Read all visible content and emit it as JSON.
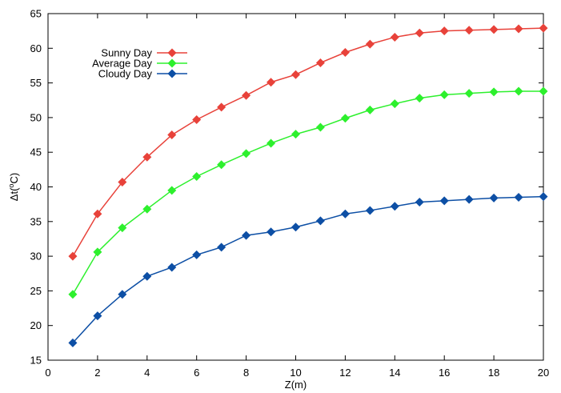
{
  "chart_data": {
    "type": "line",
    "title": "",
    "xlabel": "Z(m)",
    "ylabel": {
      "base": "Δt(",
      "sup": "o",
      "unit": "C)"
    },
    "xlim": [
      0,
      20
    ],
    "ylim": [
      15,
      65
    ],
    "xticks": [
      0,
      2,
      4,
      6,
      8,
      10,
      12,
      14,
      16,
      18,
      20
    ],
    "yticks": [
      15,
      20,
      25,
      30,
      35,
      40,
      45,
      50,
      55,
      60,
      65
    ],
    "grid": false,
    "legend_position": "top-left",
    "x": [
      1,
      2,
      3,
      4,
      5,
      6,
      7,
      8,
      9,
      10,
      11,
      12,
      13,
      14,
      15,
      16,
      17,
      18,
      19,
      20
    ],
    "series": [
      {
        "name": "Sunny Day",
        "color": "#e8423a",
        "marker": "diamond",
        "values": [
          30.0,
          36.1,
          40.7,
          44.3,
          47.5,
          49.7,
          51.5,
          53.2,
          55.1,
          56.2,
          57.9,
          59.4,
          60.6,
          61.6,
          62.2,
          62.5,
          62.6,
          62.7,
          62.8,
          62.9
        ]
      },
      {
        "name": "Average Day",
        "color": "#2df02d",
        "marker": "diamond",
        "values": [
          24.5,
          30.6,
          34.1,
          36.8,
          39.5,
          41.5,
          43.2,
          44.8,
          46.3,
          47.6,
          48.6,
          49.9,
          51.1,
          52.0,
          52.8,
          53.3,
          53.5,
          53.7,
          53.8,
          53.8
        ]
      },
      {
        "name": "Cloudy Day",
        "color": "#0d4fa5",
        "marker": "diamond",
        "values": [
          17.5,
          21.4,
          24.5,
          27.1,
          28.4,
          30.2,
          31.3,
          33.0,
          33.5,
          34.2,
          35.1,
          36.1,
          36.6,
          37.2,
          37.8,
          38.0,
          38.2,
          38.4,
          38.5,
          38.6
        ]
      }
    ]
  }
}
